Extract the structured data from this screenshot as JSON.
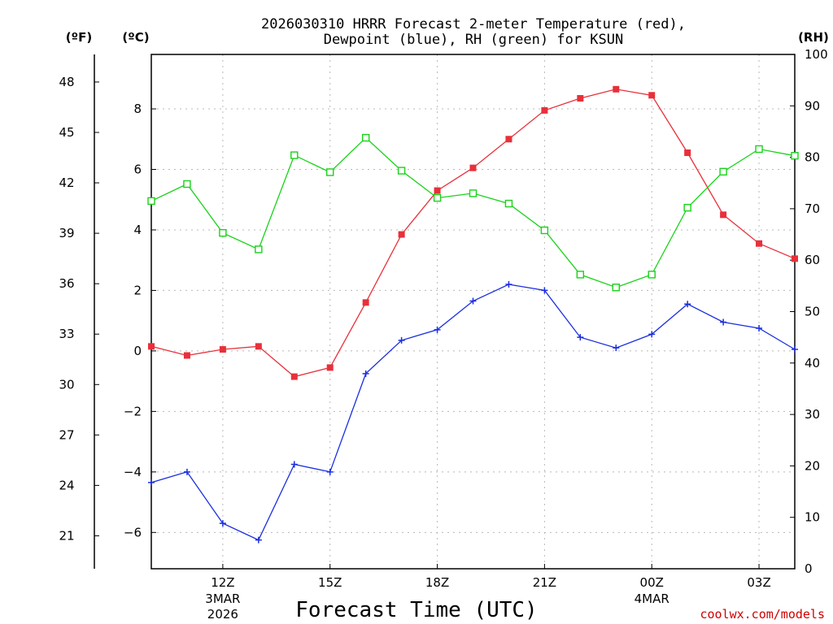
{
  "chart_data": {
    "type": "line",
    "title_line1": "2026030310 HRRR Forecast 2-meter Temperature (red),",
    "title_line2": "Dewpoint (blue), RH (green) for KSUN",
    "xlabel": "Forecast Time (UTC)",
    "credit": "coolwx.com/models",
    "units": {
      "fahrenheit": "(ºF)",
      "celsius": "(ºC)",
      "rh": "(RH)"
    },
    "x_range": [
      10,
      28
    ],
    "x_ticks": [
      {
        "x": 12,
        "label": "12Z",
        "sub1": "3MAR",
        "sub2": "2026"
      },
      {
        "x": 15,
        "label": "15Z",
        "sub1": "",
        "sub2": ""
      },
      {
        "x": 18,
        "label": "18Z",
        "sub1": "",
        "sub2": ""
      },
      {
        "x": 21,
        "label": "21Z",
        "sub1": "",
        "sub2": ""
      },
      {
        "x": 24,
        "label": "00Z",
        "sub1": "4MAR",
        "sub2": ""
      },
      {
        "x": 27,
        "label": "03Z",
        "sub1": "",
        "sub2": ""
      }
    ],
    "y_celsius": {
      "range": [
        -7.2,
        9.8
      ],
      "ticks": [
        8,
        6,
        4,
        2,
        0,
        -2,
        -4,
        -6
      ],
      "tick_labels": [
        "8",
        "6",
        "4",
        "2",
        "0",
        "−2",
        "−4",
        "−6"
      ]
    },
    "y_fahrenheit": {
      "ticks": [
        48,
        45,
        42,
        39,
        36,
        33,
        30,
        27,
        24,
        21
      ],
      "tick_labels": [
        "48",
        "45",
        "42",
        "39",
        "36",
        "33",
        "30",
        "27",
        "24",
        "21"
      ]
    },
    "y_rh": {
      "range": [
        0,
        100
      ],
      "ticks": [
        100,
        90,
        80,
        70,
        60,
        50,
        40,
        30,
        20,
        10,
        0
      ],
      "tick_labels": [
        "100",
        "90",
        "80",
        "70",
        "60",
        "50",
        "40",
        "30",
        "20",
        "10",
        "0"
      ]
    },
    "x": [
      10,
      11,
      12,
      13,
      14,
      15,
      16,
      17,
      18,
      19,
      20,
      21,
      22,
      23,
      24,
      25,
      26,
      27,
      28
    ],
    "series": [
      {
        "name": "Temperature",
        "axis": "celsius",
        "color": "#e8303a",
        "marker": "filled-square",
        "values": [
          0.15,
          -0.15,
          0.05,
          0.15,
          -0.85,
          -0.55,
          1.6,
          3.85,
          5.3,
          6.05,
          7.0,
          7.95,
          8.35,
          8.65,
          8.45,
          6.55,
          4.5,
          3.55,
          3.05
        ]
      },
      {
        "name": "Dewpoint",
        "axis": "celsius",
        "color": "#1a2ee0",
        "marker": "plus",
        "values": [
          -4.35,
          -4.0,
          -5.7,
          -6.25,
          -3.75,
          -4.0,
          -0.75,
          0.35,
          0.7,
          1.65,
          2.2,
          2.0,
          0.45,
          0.1,
          0.55,
          1.55,
          0.95,
          0.75,
          0.05
        ]
      },
      {
        "name": "RH",
        "axis": "rh",
        "color": "#19d219",
        "marker": "open-square",
        "values": [
          71.5,
          74.8,
          65.3,
          62.1,
          80.4,
          77.1,
          83.8,
          77.4,
          72.1,
          73.0,
          71.0,
          65.8,
          57.2,
          54.7,
          57.2,
          70.2,
          77.2,
          81.6,
          80.3
        ]
      }
    ]
  }
}
